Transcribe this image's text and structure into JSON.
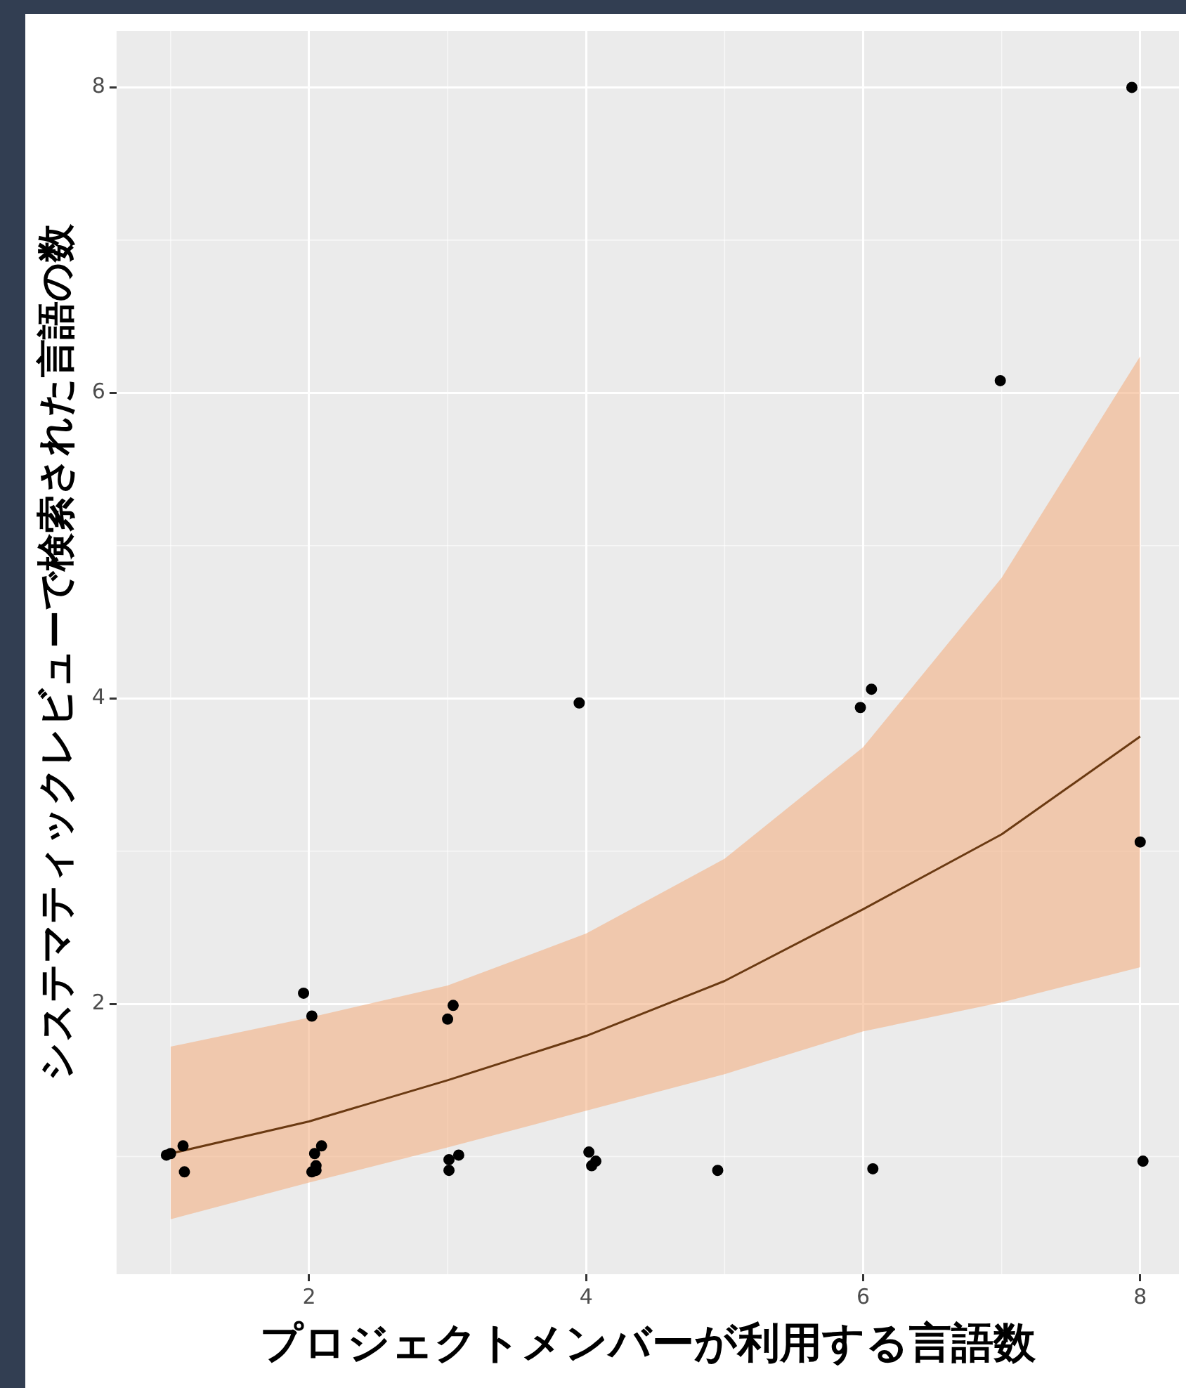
{
  "chart_data": {
    "type": "scatter",
    "xlabel": "プロジェクトメンバーが利用する言語数",
    "ylabel": "システマティックレビューで検索された言語の数",
    "xlim": [
      0.61,
      8.28
    ],
    "ylim": [
      0.23,
      8.37
    ],
    "xticks": [
      2,
      4,
      6,
      8
    ],
    "yticks": [
      2,
      4,
      6,
      8
    ],
    "grid": true,
    "legend": false,
    "marker": "circle",
    "series": [
      {
        "type": "line",
        "marker": "none",
        "color": "#6b3a12",
        "x": [
          1,
          2,
          3,
          4,
          5,
          6,
          7,
          8
        ],
        "values": [
          1.02,
          1.23,
          1.5,
          1.79,
          2.15,
          2.62,
          3.11,
          3.75
        ],
        "lower": [
          0.59,
          0.83,
          1.06,
          1.3,
          1.54,
          1.82,
          2.01,
          2.24
        ],
        "upper": [
          1.72,
          1.91,
          2.12,
          2.46,
          2.95,
          3.68,
          4.79,
          6.24
        ]
      },
      {
        "color": "#000000",
        "x": [
          0.97,
          1.0,
          1.09,
          1.1,
          1.96,
          2.02,
          2.04,
          2.05,
          2.02,
          2.05,
          2.09,
          3.0,
          3.04,
          3.01,
          3.08,
          3.01,
          3.95,
          4.02,
          4.07,
          4.04,
          4.95,
          5.98,
          6.06,
          6.07,
          8.0,
          8.02,
          7.94,
          6.99
        ],
        "values": [
          1.01,
          1.02,
          1.07,
          0.9,
          2.07,
          1.92,
          1.02,
          0.94,
          0.9,
          0.91,
          1.07,
          1.9,
          1.99,
          0.98,
          1.01,
          0.91,
          3.97,
          1.03,
          0.97,
          0.94,
          0.91,
          3.94,
          4.06,
          0.92,
          3.06,
          0.97,
          8.0,
          6.08
        ]
      }
    ]
  }
}
